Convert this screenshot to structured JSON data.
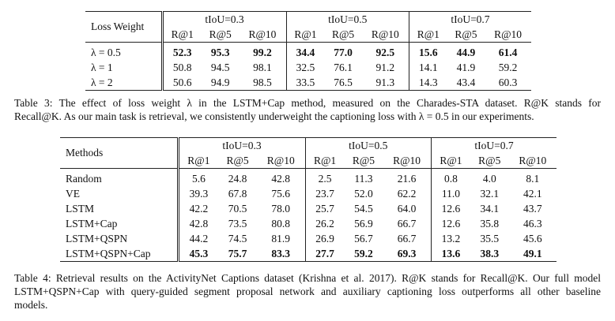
{
  "table3": {
    "row_header": "Loss Weight",
    "groups": [
      "tIoU=0.3",
      "tIoU=0.5",
      "tIoU=0.7"
    ],
    "subcols": [
      "R@1",
      "R@5",
      "R@10"
    ],
    "bold_row": 0,
    "rows": [
      {
        "label": "λ = 0.5",
        "values": [
          "52.3",
          "95.3",
          "99.2",
          "34.4",
          "77.0",
          "92.5",
          "15.6",
          "44.9",
          "61.4"
        ]
      },
      {
        "label": "λ = 1",
        "values": [
          "50.8",
          "94.5",
          "98.1",
          "32.5",
          "76.1",
          "91.2",
          "14.1",
          "41.9",
          "59.2"
        ]
      },
      {
        "label": "λ = 2",
        "values": [
          "50.6",
          "94.9",
          "98.5",
          "33.5",
          "76.5",
          "91.3",
          "14.3",
          "43.4",
          "60.3"
        ]
      }
    ],
    "caption_lines": [
      "Table 3: The effect of loss weight λ in the LSTM+Cap method, measured on the Charades-STA dataset. R@K stands for",
      "Recall@K. As our main task is retrieval, we consistently underweight the captioning loss with λ = 0.5 in our experiments."
    ]
  },
  "table4": {
    "row_header": "Methods",
    "groups": [
      "tIoU=0.3",
      "tIoU=0.5",
      "tIoU=0.7"
    ],
    "subcols": [
      "R@1",
      "R@5",
      "R@10"
    ],
    "bold_row": 5,
    "rows": [
      {
        "label": "Random",
        "values": [
          "5.6",
          "24.8",
          "42.8",
          "2.5",
          "11.3",
          "21.6",
          "0.8",
          "4.0",
          "8.1"
        ]
      },
      {
        "label": "VE",
        "values": [
          "39.3",
          "67.8",
          "75.6",
          "23.7",
          "52.0",
          "62.2",
          "11.0",
          "32.1",
          "42.1"
        ]
      },
      {
        "label": "LSTM",
        "values": [
          "42.2",
          "70.5",
          "78.0",
          "25.7",
          "54.5",
          "64.0",
          "12.6",
          "34.1",
          "43.7"
        ]
      },
      {
        "label": "LSTM+Cap",
        "values": [
          "42.8",
          "73.5",
          "80.8",
          "26.2",
          "56.9",
          "66.7",
          "12.6",
          "35.8",
          "46.3"
        ]
      },
      {
        "label": "LSTM+QSPN",
        "values": [
          "44.2",
          "74.5",
          "81.9",
          "26.9",
          "56.7",
          "66.7",
          "13.2",
          "35.5",
          "45.6"
        ]
      },
      {
        "label": "LSTM+QSPN+Cap",
        "values": [
          "45.3",
          "75.7",
          "83.3",
          "27.7",
          "59.2",
          "69.3",
          "13.6",
          "38.3",
          "49.1"
        ]
      }
    ],
    "caption_lines": [
      "Table 4: Retrieval results on the ActivityNet Captions dataset (Krishna et al. 2017). R@K stands for Recall@K. Our full model",
      "LSTM+QSPN+Cap with query-guided segment proposal network and auxiliary captioning loss outperforms all other baseline",
      "models."
    ]
  }
}
